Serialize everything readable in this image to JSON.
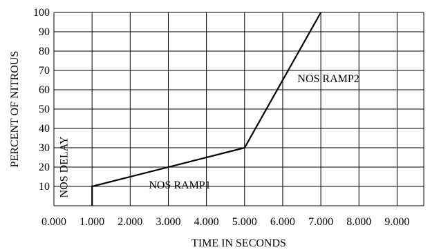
{
  "chart_data": {
    "type": "line",
    "title": "",
    "xlabel": "TIME IN SECONDS",
    "ylabel": "PERCENT OF NITROUS",
    "xlim": [
      0,
      9.7
    ],
    "ylim": [
      0,
      100
    ],
    "grid": true,
    "x_ticks": [
      0,
      1,
      2,
      3,
      4,
      5,
      6,
      7,
      8,
      9
    ],
    "x_tick_labels": [
      "0.000",
      "1.000",
      "2.000",
      "3.000",
      "4.000",
      "5.000",
      "6.000",
      "7.000",
      "8.000",
      "9.000"
    ],
    "y_ticks": [
      10,
      20,
      30,
      40,
      50,
      60,
      70,
      80,
      90,
      100
    ],
    "y_tick_labels": [
      "10",
      "20",
      "30",
      "40",
      "50",
      "60",
      "70",
      "80",
      "90",
      "100"
    ],
    "series": [
      {
        "x": [
          1.0,
          1.0,
          5.0,
          7.0
        ],
        "y": [
          0,
          10,
          30,
          100
        ]
      }
    ],
    "annotations": [
      {
        "text": "NOS DELAY",
        "x": 0.35,
        "y": 20,
        "rotation": -90
      },
      {
        "text": "NOS RAMP1",
        "x": 3.3,
        "y": 9
      },
      {
        "text": "NOS RAMP2",
        "x": 7.2,
        "y": 64
      }
    ]
  }
}
